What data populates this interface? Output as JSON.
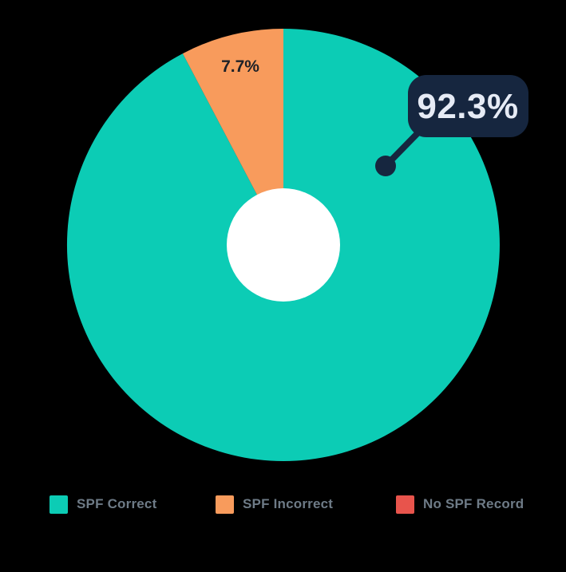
{
  "chart_data": {
    "type": "pie",
    "variant": "donut",
    "title": "",
    "categories": [
      "SPF Correct",
      "SPF Incorrect",
      "No SPF Record"
    ],
    "values": [
      92.3,
      7.7,
      0
    ],
    "unit": "%",
    "colors": [
      "#0cccb5",
      "#f89b5c",
      "#e8544c"
    ],
    "hole_color": "#ffffff",
    "start_angle_deg": 0,
    "legend_position": "bottom",
    "data_labels": [
      "92.3%",
      "7.7%"
    ]
  },
  "callout": {
    "label": "92.3%",
    "bg_color": "#16263f",
    "text_color": "#e6ebf5"
  },
  "slice_label": {
    "text": "7.7%",
    "color": "#1e2127"
  },
  "legend": {
    "items": [
      {
        "label": "SPF Correct",
        "color": "#0cccb5"
      },
      {
        "label": "SPF Incorrect",
        "color": "#f89b5c"
      },
      {
        "label": "No SPF Record",
        "color": "#e8544c"
      }
    ]
  }
}
